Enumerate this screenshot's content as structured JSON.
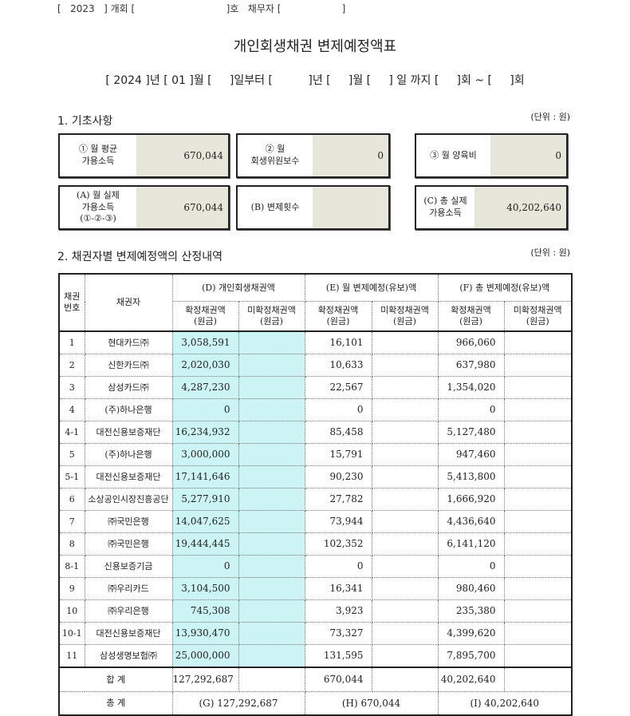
{
  "header": {
    "text": "[   2023   ] 개회 [                              ]호   채무자 [                    ]"
  },
  "title": "개인회생채권 변제예정액표",
  "period": "[ 2024 ]년 [ 01 ]월 [     ]일부터 [          ]년 [     ]월 [     ] 일 까지 [     ]회 ~ [     ]회",
  "section1": {
    "title": "1. 기초사항",
    "unit": "(단위 : 원)",
    "boxes": [
      {
        "label": "① 월 평균\n가용소득",
        "value": "670,044"
      },
      {
        "label": "② 월\n회생위원보수",
        "value": "0"
      },
      {
        "label": "③ 월 양육비",
        "value": "0"
      },
      {
        "label": "(A) 월 실제\n가용소득\n(①-②-③)",
        "value": "670,044"
      },
      {
        "label": "(B) 변제횟수",
        "value": ""
      },
      {
        "label": "(C) 총 실제\n가용소득",
        "value": "40,202,640"
      }
    ]
  },
  "section2": {
    "title": "2. 채권자별 변제예정액의 산정내역",
    "unit": "(단위 : 원)"
  },
  "table": {
    "headers": {
      "no": "채권\n번호",
      "creditor": "채권자",
      "D": "(D) 개인회생채권액",
      "E": "(E) 월 변제예정(유보)액",
      "F": "(F) 총 변제예정(유보)액",
      "confirmed": "확정채권액\n(원금)",
      "unconfirmed": "미확정채권액\n(원금)"
    },
    "rows": [
      {
        "no": "1",
        "name": "현대카드㈜",
        "d": "3,058,591",
        "e": "16,101",
        "f": "966,060"
      },
      {
        "no": "2",
        "name": "신한카드㈜",
        "d": "2,020,030",
        "e": "10,633",
        "f": "637,980"
      },
      {
        "no": "3",
        "name": "삼성카드㈜",
        "d": "4,287,230",
        "e": "22,567",
        "f": "1,354,020"
      },
      {
        "no": "4",
        "name": "(주)하나은행",
        "d": "0",
        "e": "0",
        "f": "0"
      },
      {
        "no": "4-1",
        "name": "대전신용보증재단",
        "d": "16,234,932",
        "e": "85,458",
        "f": "5,127,480"
      },
      {
        "no": "5",
        "name": "(주)하나은행",
        "d": "3,000,000",
        "e": "15,791",
        "f": "947,460"
      },
      {
        "no": "5-1",
        "name": "대전신용보증재단",
        "d": "17,141,646",
        "e": "90,230",
        "f": "5,413,800"
      },
      {
        "no": "6",
        "name": "소상공인시장진흥공단",
        "d": "5,277,910",
        "e": "27,782",
        "f": "1,666,920"
      },
      {
        "no": "7",
        "name": "㈜국민은행",
        "d": "14,047,625",
        "e": "73,944",
        "f": "4,436,640"
      },
      {
        "no": "8",
        "name": "㈜국민은행",
        "d": "19,444,445",
        "e": "102,352",
        "f": "6,141,120"
      },
      {
        "no": "8-1",
        "name": "신용보증기금",
        "d": "0",
        "e": "0",
        "f": "0"
      },
      {
        "no": "9",
        "name": "㈜우리카드",
        "d": "3,104,500",
        "e": "16,341",
        "f": "980,460"
      },
      {
        "no": "10",
        "name": "㈜우리은행",
        "d": "745,308",
        "e": "3,923",
        "f": "235,380"
      },
      {
        "no": "10-1",
        "name": "대전신용보증재단",
        "d": "13,930,470",
        "e": "73,327",
        "f": "4,399,620"
      },
      {
        "no": "11",
        "name": "삼성생명보험㈜",
        "d": "25,000,000",
        "e": "131,595",
        "f": "7,895,700"
      }
    ],
    "total": {
      "label": "합 계",
      "d": "127,292,687",
      "e": "670,044",
      "f": "40,202,640"
    },
    "grand": {
      "label": "총 계",
      "g": "(G) 127,292,687",
      "h": "(H) 670,044",
      "i": "(I) 40,202,640"
    }
  },
  "colors": {
    "value_fill": "#e6e6da",
    "confirmed_fill": "#cdf4f4"
  }
}
